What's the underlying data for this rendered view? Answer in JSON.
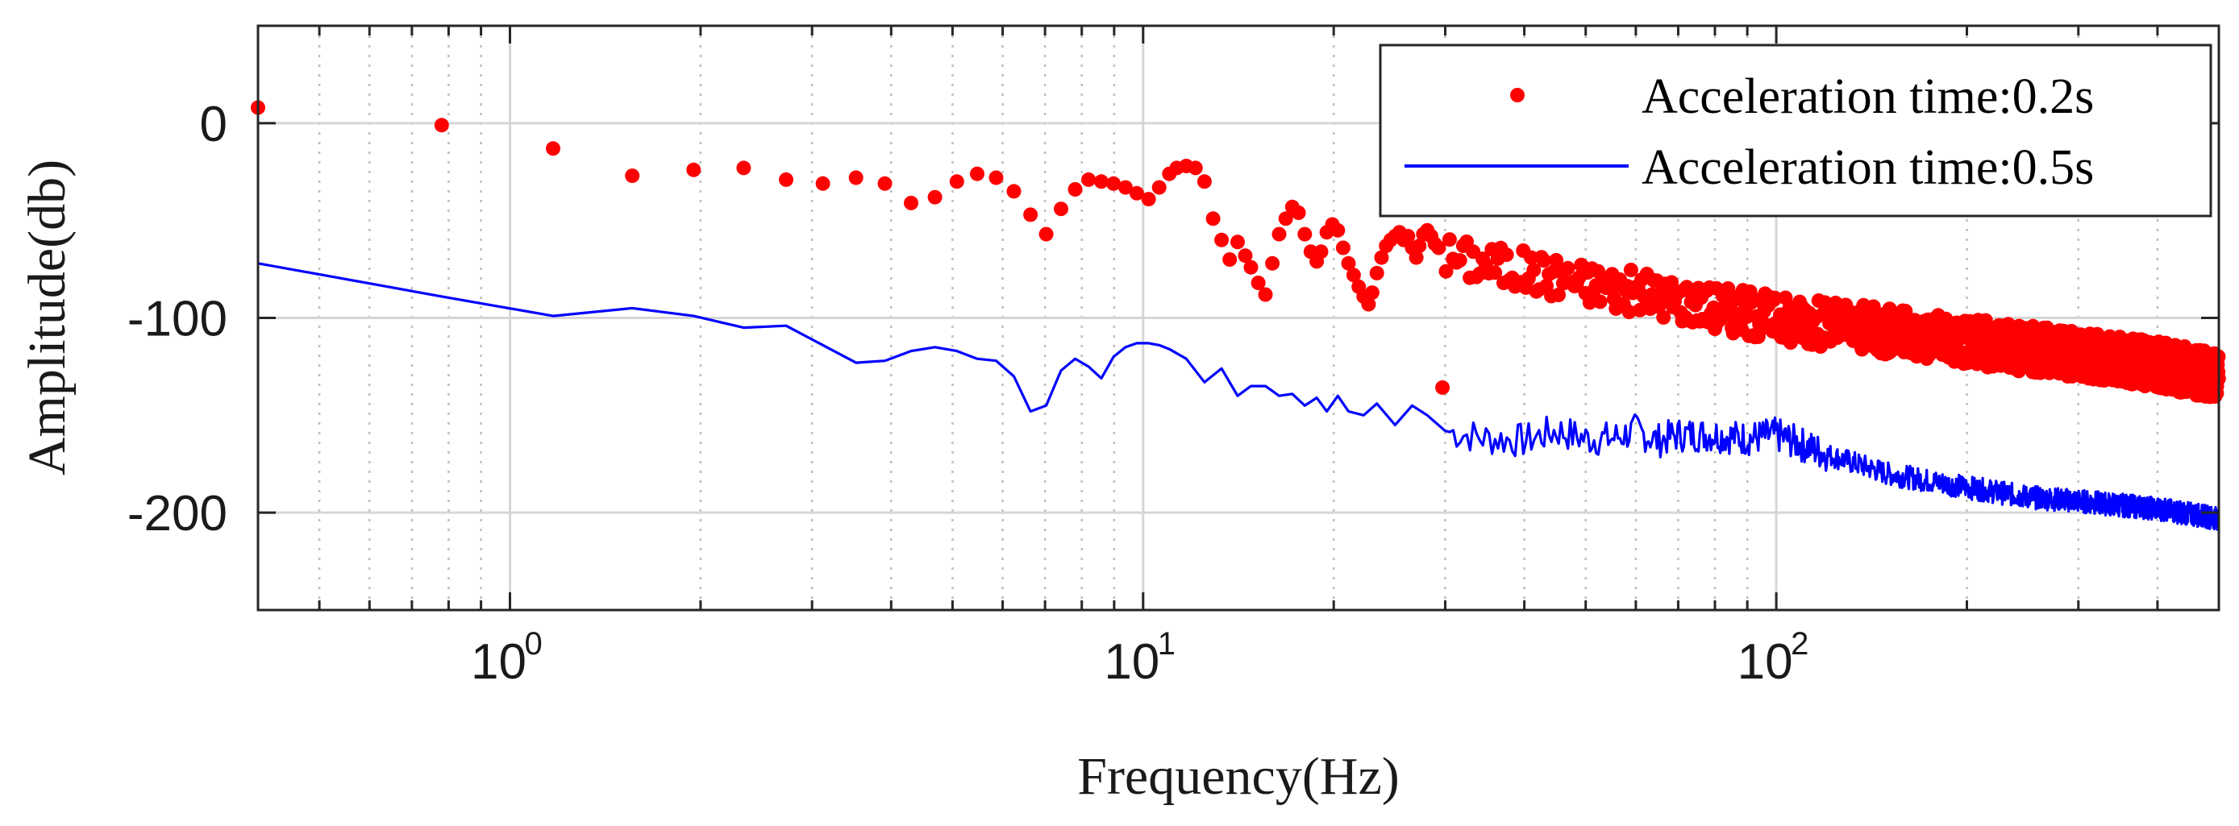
{
  "chart_data": {
    "type": "scatter",
    "title": "",
    "xlabel": "Frequency(Hz)",
    "ylabel": "Amplitude(db)",
    "xscale": "log",
    "xlim": [
      0.4,
      500
    ],
    "ylim": [
      -250,
      50
    ],
    "grid": true,
    "legend_position": "top-right",
    "x_ticks": [
      {
        "base": "10",
        "exp": "0",
        "value": 1
      },
      {
        "base": "10",
        "exp": "1",
        "value": 10
      },
      {
        "base": "10",
        "exp": "2",
        "value": 100
      }
    ],
    "y_ticks": [
      {
        "label": "0",
        "value": 0
      },
      {
        "label": "-100",
        "value": -100
      },
      {
        "label": "-200",
        "value": -200
      }
    ],
    "series": [
      {
        "name": "Acceleration time:0.2s",
        "style": "markers",
        "color": "#ff0000",
        "x": [
          0.4,
          0.78,
          1.17,
          1.56,
          1.95,
          2.34,
          2.73,
          3.12,
          3.52,
          3.91,
          4.3,
          4.69,
          5.08,
          5.47,
          5.86,
          6.25,
          6.64,
          7.03,
          7.42,
          7.81,
          8.2,
          8.59,
          8.98,
          9.38,
          9.77,
          10.2,
          10.6,
          11.0,
          11.3,
          11.7,
          12.1,
          12.5,
          12.9,
          13.3,
          13.7,
          14.1,
          14.5,
          14.8,
          15.2,
          15.6,
          16.0,
          16.4,
          16.8,
          17.2,
          17.6,
          18.0,
          18.4,
          18.8,
          19.1,
          19.5,
          19.9,
          20.3,
          20.7,
          21.1,
          21.5,
          21.9,
          22.3,
          22.7,
          23.0,
          23.4,
          23.8,
          24.2,
          24.6,
          25.0,
          25.4,
          25.8,
          26.2,
          26.6,
          27.0,
          27.3,
          27.7,
          28.1,
          28.5,
          28.9,
          29.3
        ],
        "y": [
          8,
          -1,
          -13,
          -27,
          -24,
          -23,
          -29,
          -31,
          -28,
          -31,
          -41,
          -38,
          -30,
          -26,
          -28,
          -35,
          -47,
          -57,
          -44,
          -34,
          -29,
          -30,
          -31,
          -33,
          -36,
          -39,
          -33,
          -26,
          -23,
          -22,
          -23,
          -30,
          -49,
          -60,
          -70,
          -61,
          -68,
          -74,
          -82,
          -88,
          -72,
          -57,
          -49,
          -43,
          -46,
          -57,
          -66,
          -71,
          -66,
          -56,
          -52,
          -55,
          -64,
          -72,
          -78,
          -84,
          -89,
          -93,
          -87,
          -77,
          -69,
          -63,
          -60,
          -58,
          -56,
          -60,
          -58,
          -64,
          -69,
          -63,
          -57,
          -55,
          -58,
          -62,
          -64
        ],
        "trend_beyond_30hz": {
          "x": [
            30,
            50,
            100,
            200,
            400,
            500
          ],
          "y": [
            -68,
            -82,
            -100,
            -112,
            -124,
            -130
          ]
        }
      },
      {
        "name": "Acceleration time:0.5s",
        "style": "line",
        "color": "#0000ff",
        "x": [
          0.4,
          0.78,
          1.17,
          1.56,
          1.95,
          2.34,
          2.73,
          3.12,
          3.52,
          3.91,
          4.3,
          4.69,
          5.08,
          5.47,
          5.86,
          6.25,
          6.64,
          7.03,
          7.42,
          7.81,
          8.2,
          8.59,
          8.98,
          9.38,
          9.77,
          10.2,
          10.6,
          11.0,
          11.7,
          12.5,
          13.3,
          14.1,
          14.8,
          15.6,
          16.4,
          17.2,
          18.0,
          18.8,
          19.5,
          20.3,
          21.1,
          22.3,
          23.4,
          25.0,
          26.6,
          28.1,
          30,
          35,
          40,
          45,
          50,
          55,
          60,
          65,
          70,
          80,
          90,
          100,
          120,
          150,
          200,
          250,
          300,
          400,
          500
        ],
        "y": [
          -72,
          -89,
          -99,
          -95,
          -99,
          -105,
          -104,
          -114,
          -123,
          -122,
          -117,
          -115,
          -117,
          -121,
          -122,
          -130,
          -148,
          -145,
          -127,
          -121,
          -125,
          -131,
          -120,
          -115,
          -113,
          -113,
          -114,
          -116,
          -121,
          -133,
          -126,
          -140,
          -135,
          -135,
          -140,
          -139,
          -145,
          -141,
          -148,
          -140,
          -148,
          -150,
          -144,
          -155,
          -145,
          -150,
          -158,
          -162,
          -163,
          -158,
          -162,
          -162,
          -158,
          -163,
          -160,
          -160,
          -162,
          -160,
          -170,
          -180,
          -187,
          -192,
          -194,
          -198,
          -203
        ]
      }
    ]
  }
}
